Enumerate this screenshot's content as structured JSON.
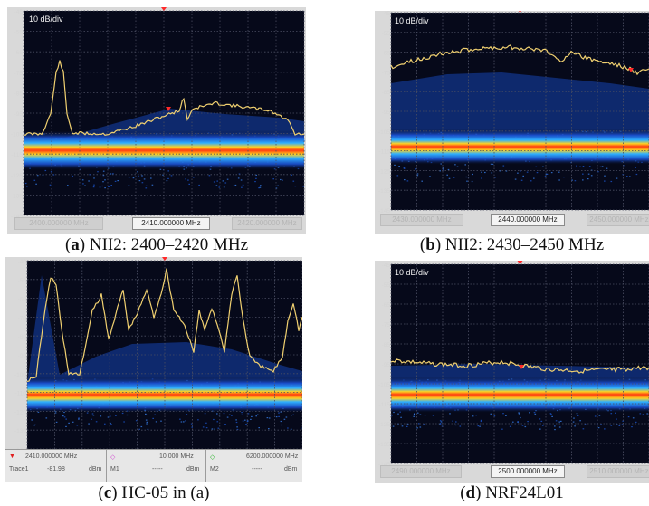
{
  "panels": [
    {
      "id": "a",
      "caption_letter": "a",
      "caption_text": "NII2: 2400–2420 MHz",
      "scale_label": "10 dB/div",
      "y_ticks": [
        "-45",
        "-55",
        "-65",
        "-75",
        "-85",
        "-95",
        "-105",
        "-115",
        "-125",
        "-135",
        "-145"
      ],
      "center_freq": "2410.000000 MHz",
      "start_freq": "2400.000000 MHz",
      "stop_freq": "2420.000000 MHz"
    },
    {
      "id": "b",
      "caption_letter": "b",
      "caption_text": "NII2: 2430–2450 MHz",
      "scale_label": "10 dB/div",
      "y_ticks": [
        "-45",
        "-55",
        "-65",
        "-75",
        "-85",
        "-95",
        "-105",
        "-115",
        "-125",
        "-135",
        "-145"
      ],
      "center_freq": "2440.000000 MHz",
      "start_freq": "2430.000000 MHz",
      "stop_freq": "2450.000000 MHz"
    },
    {
      "id": "c",
      "caption_letter": "c",
      "caption_text": "HC-05 in (a)",
      "scale_label": "",
      "y_ticks": [
        "-40",
        "-50",
        "-60",
        "-70",
        "-80",
        "-90",
        "-100",
        "-110",
        "-120",
        "-130",
        "-140"
      ],
      "status": {
        "marker_freq": "2410.000000 MHz",
        "marker_label": "Trace1",
        "marker_value": "-81.98",
        "marker_unit": "dBm",
        "m1_freq": "10.000 MHz",
        "m1_label": "M1",
        "m1_value": "-----",
        "m1_unit": "dBm",
        "m2_freq": "6200.000000 MHz",
        "m2_label": "M2",
        "m2_value": "-----",
        "m2_unit": "dBm"
      }
    },
    {
      "id": "d",
      "caption_letter": "d",
      "caption_text": "NRF24L01",
      "scale_label": "10 dB/div",
      "y_ticks": [
        "-45",
        "-55",
        "-65",
        "-75",
        "-85",
        "-95",
        "-105",
        "-115",
        "-125",
        "-135",
        "-145"
      ],
      "center_freq": "2500.000000 MHz",
      "start_freq": "2490.000000 MHz",
      "stop_freq": "2510.000000 MHz"
    }
  ],
  "colors": {
    "plot_bg": "#06091a",
    "grid": "#4a4e62",
    "trace": "#f0d070",
    "marker": "#ff2a2a",
    "band_hot": "#ff3a10",
    "band_warm": "#ffd020",
    "band_cool": "#2fb0ff",
    "band_mid": "#1a4fd0"
  }
}
